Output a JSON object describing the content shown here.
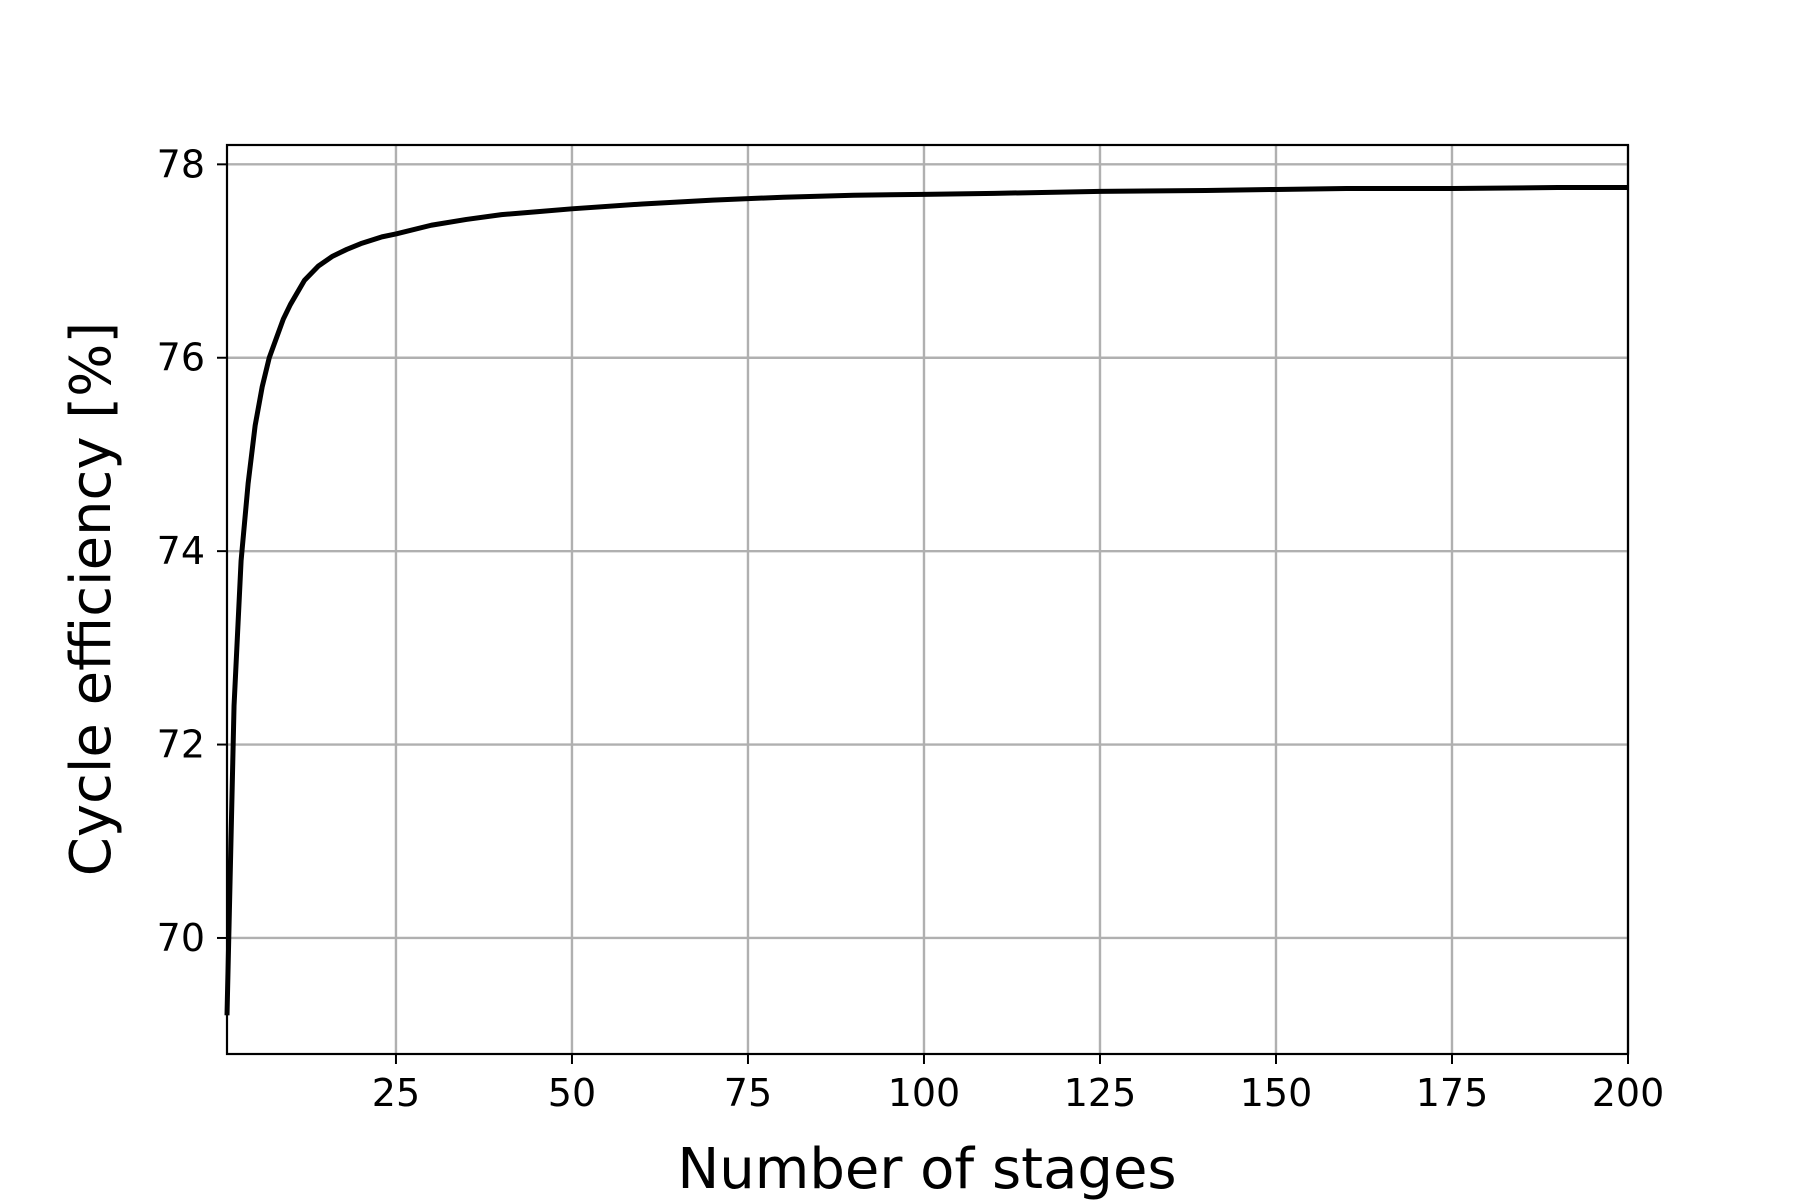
{
  "chart_data": {
    "type": "line",
    "title": "",
    "xlabel": "Number of stages",
    "ylabel": "Cycle efficiency [%]",
    "xlim": [
      1,
      200
    ],
    "ylim": [
      68.8,
      78.2
    ],
    "xticks": [
      25,
      50,
      75,
      100,
      125,
      150,
      175,
      200
    ],
    "yticks": [
      70,
      72,
      74,
      76,
      78
    ],
    "grid": true,
    "legend": "none",
    "series": [
      {
        "color": "#000000",
        "x": [
          1,
          2,
          3,
          4,
          5,
          6,
          7,
          8,
          9,
          10,
          12,
          14,
          16,
          18,
          20,
          23,
          25,
          30,
          35,
          40,
          45,
          50,
          60,
          70,
          80,
          90,
          100,
          110,
          125,
          140,
          150,
          160,
          175,
          190,
          200
        ],
        "y": [
          69.2,
          72.4,
          73.9,
          74.7,
          75.3,
          75.7,
          76.0,
          76.2,
          76.4,
          76.55,
          76.8,
          76.95,
          77.05,
          77.12,
          77.18,
          77.25,
          77.28,
          77.37,
          77.43,
          77.48,
          77.51,
          77.54,
          77.59,
          77.63,
          77.66,
          77.68,
          77.69,
          77.7,
          77.72,
          77.73,
          77.74,
          77.75,
          77.75,
          77.76,
          77.76
        ]
      }
    ],
    "colors": {
      "grid": "#b0b0b0",
      "axes": "#000000",
      "line": "#000000"
    }
  }
}
